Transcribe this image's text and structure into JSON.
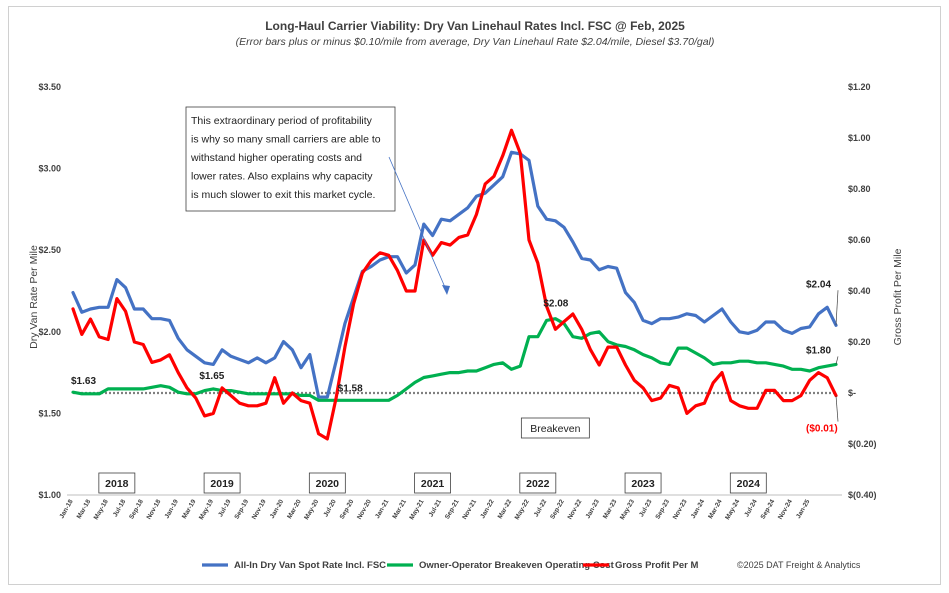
{
  "chart_data": {
    "type": "line",
    "title": "Long-Haul Carrier Viability: Dry Van Linehaul Rates Incl. FSC @ Feb, 2025",
    "subtitle": "(Error bars plus or minus $0.10/mile from average, Dry Van Linehaul Rate $2.04/mile, Diesel $3.70/gal)",
    "ylabel_left": "Dry Van Rate Per Mile",
    "ylabel_right": "Gross Profit Per Mile",
    "ylim_left": [
      1.0,
      3.5
    ],
    "ylim_right": [
      -0.4,
      1.2
    ],
    "yticks_left": [
      "$1.00",
      "$1.50",
      "$2.00",
      "$2.50",
      "$3.00",
      "$3.50"
    ],
    "yticks_right": [
      "$(0.40)",
      "$(0.20)",
      "$-",
      "$0.20",
      "$0.40",
      "$0.60",
      "$0.80",
      "$1.00",
      "$1.20"
    ],
    "x_labels": [
      "Jan-18",
      "Mar-18",
      "May-18",
      "Jul-18",
      "Sep-18",
      "Nov-18",
      "Jan-19",
      "Mar-19",
      "May-19",
      "Jul-19",
      "Sep-19",
      "Nov-19",
      "Jan-20",
      "Mar-20",
      "May-20",
      "Jul-20",
      "Sep-20",
      "Nov-20",
      "Jan-21",
      "Mar-21",
      "May-21",
      "Jul-21",
      "Sep-21",
      "Nov-21",
      "Jan-22",
      "Mar-22",
      "May-22",
      "Jul-22",
      "Sep-22",
      "Nov-22",
      "Jan-23",
      "Mar-23",
      "May-23",
      "Jul-23",
      "Sep-23",
      "Nov-23",
      "Jan-24",
      "Mar-24",
      "May-24",
      "Jul-24",
      "Sep-24",
      "Nov-24",
      "Jan-25"
    ],
    "years": [
      {
        "label": "2018",
        "month_index": 5
      },
      {
        "label": "2019",
        "month_index": 17
      },
      {
        "label": "2020",
        "month_index": 29
      },
      {
        "label": "2021",
        "month_index": 41
      },
      {
        "label": "2022",
        "month_index": 53
      },
      {
        "label": "2023",
        "month_index": 65
      },
      {
        "label": "2024",
        "month_index": 77
      }
    ],
    "series": [
      {
        "name": "All-In Dry Van Spot Rate Incl. FSC",
        "axis": "left",
        "color": "#4472c4",
        "values": [
          2.24,
          2.12,
          2.14,
          2.15,
          2.15,
          2.32,
          2.27,
          2.14,
          2.14,
          2.08,
          2.08,
          2.07,
          1.96,
          1.89,
          1.85,
          1.81,
          1.8,
          1.89,
          1.85,
          1.83,
          1.81,
          1.84,
          1.81,
          1.84,
          1.94,
          1.89,
          1.78,
          1.86,
          1.6,
          1.6,
          1.82,
          2.05,
          2.21,
          2.37,
          2.4,
          2.44,
          2.46,
          2.46,
          2.36,
          2.41,
          2.66,
          2.59,
          2.69,
          2.68,
          2.72,
          2.76,
          2.83,
          2.85,
          2.9,
          2.95,
          3.1,
          3.09,
          3.05,
          2.77,
          2.69,
          2.68,
          2.64,
          2.55,
          2.45,
          2.44,
          2.38,
          2.4,
          2.39,
          2.24,
          2.18,
          2.07,
          2.05,
          2.08,
          2.08,
          2.09,
          2.11,
          2.1,
          2.06,
          2.1,
          2.14,
          2.06,
          2.0,
          1.99,
          2.01,
          2.06,
          2.06,
          2.01,
          1.99,
          2.02,
          2.03,
          2.11,
          2.15,
          2.04
        ]
      },
      {
        "name": "Owner-Operator Breakeven Operating Cost",
        "axis": "left",
        "color": "#00b050",
        "values": [
          1.63,
          1.62,
          1.62,
          1.62,
          1.65,
          1.65,
          1.65,
          1.65,
          1.65,
          1.66,
          1.67,
          1.66,
          1.63,
          1.62,
          1.62,
          1.64,
          1.65,
          1.64,
          1.64,
          1.63,
          1.62,
          1.62,
          1.62,
          1.62,
          1.62,
          1.62,
          1.61,
          1.61,
          1.58,
          1.58,
          1.58,
          1.58,
          1.58,
          1.58,
          1.58,
          1.58,
          1.58,
          1.61,
          1.65,
          1.69,
          1.72,
          1.73,
          1.74,
          1.75,
          1.75,
          1.76,
          1.76,
          1.78,
          1.8,
          1.81,
          1.77,
          1.79,
          1.97,
          1.97,
          2.07,
          2.08,
          2.05,
          1.97,
          1.96,
          1.99,
          2.0,
          1.94,
          1.92,
          1.91,
          1.89,
          1.86,
          1.84,
          1.81,
          1.8,
          1.9,
          1.9,
          1.87,
          1.84,
          1.8,
          1.81,
          1.81,
          1.82,
          1.82,
          1.81,
          1.81,
          1.8,
          1.79,
          1.77,
          1.77,
          1.76,
          1.78,
          1.79,
          1.8
        ]
      },
      {
        "name": "Gross Profit Per M",
        "axis": "right",
        "color": "#ff0000",
        "values": [
          0.33,
          0.23,
          0.29,
          0.22,
          0.21,
          0.37,
          0.32,
          0.2,
          0.19,
          0.12,
          0.13,
          0.15,
          0.08,
          0.02,
          -0.02,
          -0.09,
          -0.08,
          0.02,
          -0.01,
          -0.04,
          -0.05,
          -0.05,
          -0.04,
          0.06,
          -0.04,
          0.0,
          -0.03,
          -0.04,
          -0.16,
          -0.18,
          -0.02,
          0.18,
          0.35,
          0.47,
          0.52,
          0.55,
          0.54,
          0.48,
          0.4,
          0.4,
          0.6,
          0.54,
          0.59,
          0.58,
          0.61,
          0.62,
          0.7,
          0.82,
          0.85,
          0.93,
          1.03,
          0.94,
          0.6,
          0.51,
          0.34,
          0.25,
          0.28,
          0.31,
          0.25,
          0.17,
          0.11,
          0.18,
          0.18,
          0.11,
          0.05,
          0.02,
          -0.03,
          -0.02,
          0.03,
          0.02,
          -0.08,
          -0.05,
          -0.04,
          0.04,
          0.08,
          -0.03,
          -0.05,
          -0.06,
          -0.06,
          0.01,
          0.01,
          -0.03,
          -0.03,
          -0.01,
          0.05,
          0.08,
          0.06,
          -0.01
        ]
      }
    ],
    "breakeven_line": 0,
    "annotations": [
      {
        "text": "$1.63",
        "index": 0,
        "series": 1
      },
      {
        "text": "$1.65",
        "index": 16,
        "series": 1
      },
      {
        "text": "$1.58",
        "index": 32,
        "series": 1
      },
      {
        "text": "$2.08",
        "index": 55,
        "series": 1
      },
      {
        "text": "$2.04",
        "index": 87,
        "series": 0
      },
      {
        "text": "$1.80",
        "index": 87,
        "series": 1
      },
      {
        "text": "($0.01)",
        "index": 87,
        "series": 2
      }
    ],
    "breakeven_label": "Breakeven",
    "note_lines": [
      "This extraordinary period of profitability",
      "is why so many small carriers are able to",
      "withstand higher operating costs and",
      "lower rates. Also explains why capacity",
      "is much slower to exit this market cycle."
    ],
    "legend": [
      {
        "label": "All-In Dry Van Spot Rate Incl. FSC",
        "color": "#4472c4"
      },
      {
        "label": "Owner-Operator Breakeven Operating Cost",
        "color": "#00b050"
      },
      {
        "label": "Gross Profit Per M",
        "color": "#ff0000"
      }
    ],
    "legend_position": "bottom",
    "credit": "©2025 DAT Freight & Analytics",
    "grid": false
  }
}
